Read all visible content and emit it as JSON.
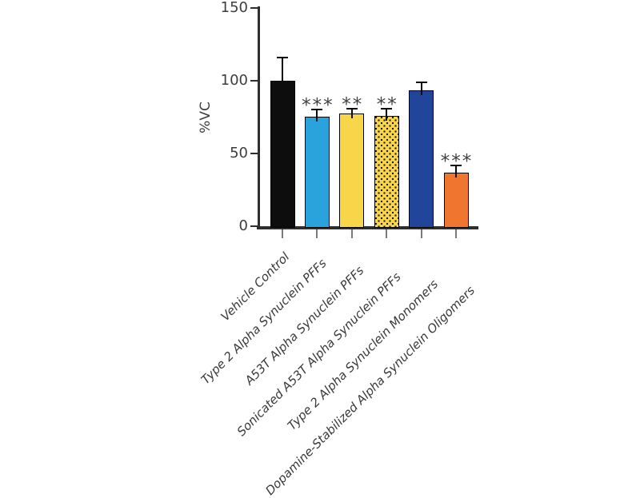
{
  "chart_data": {
    "type": "bar",
    "title": "",
    "ylabel": "%VC",
    "xlabel": "",
    "ylim": [
      0,
      150
    ],
    "yticks": [
      "0",
      "50",
      "100",
      "150"
    ],
    "ytick_values": [
      0,
      50,
      100,
      150
    ],
    "grid": false,
    "legend": null,
    "categories": [
      "Vehicle Control",
      "Type 2 Alpha Synuclein PFFs",
      "A53T Alpha Synuclein PFFs",
      "Sonicated A53T Alpha Synuclein PFFs",
      "Type 2 Alpha Synuclein Monomers",
      "Dopamine-Stabilized Alpha Synuclein Oligomers"
    ],
    "values": [
      100,
      75.5,
      77.5,
      76,
      93.5,
      37
    ],
    "error_plus": [
      16,
      4.5,
      3.5,
      5,
      5.5,
      5
    ],
    "significance": [
      "",
      "***",
      "**",
      "**",
      "",
      "***"
    ],
    "bar_colors": [
      "#0d0d0d",
      "#2aa2db",
      "#f9d54a",
      "#f9d54a",
      "#21459b",
      "#f0762f"
    ],
    "bar_patterns": [
      "solid",
      "solid",
      "solid",
      "dots",
      "solid",
      "solid"
    ],
    "colors": {
      "axis": "#2e2e2e",
      "x_tick": "#7a7a7a",
      "tick_label_text": "#3d3d3d",
      "category_label_text": "#3a3a3a",
      "error_bar": "#0d0d0d",
      "dot_pattern": "#1a1a1a",
      "background": "#ffffff"
    }
  }
}
